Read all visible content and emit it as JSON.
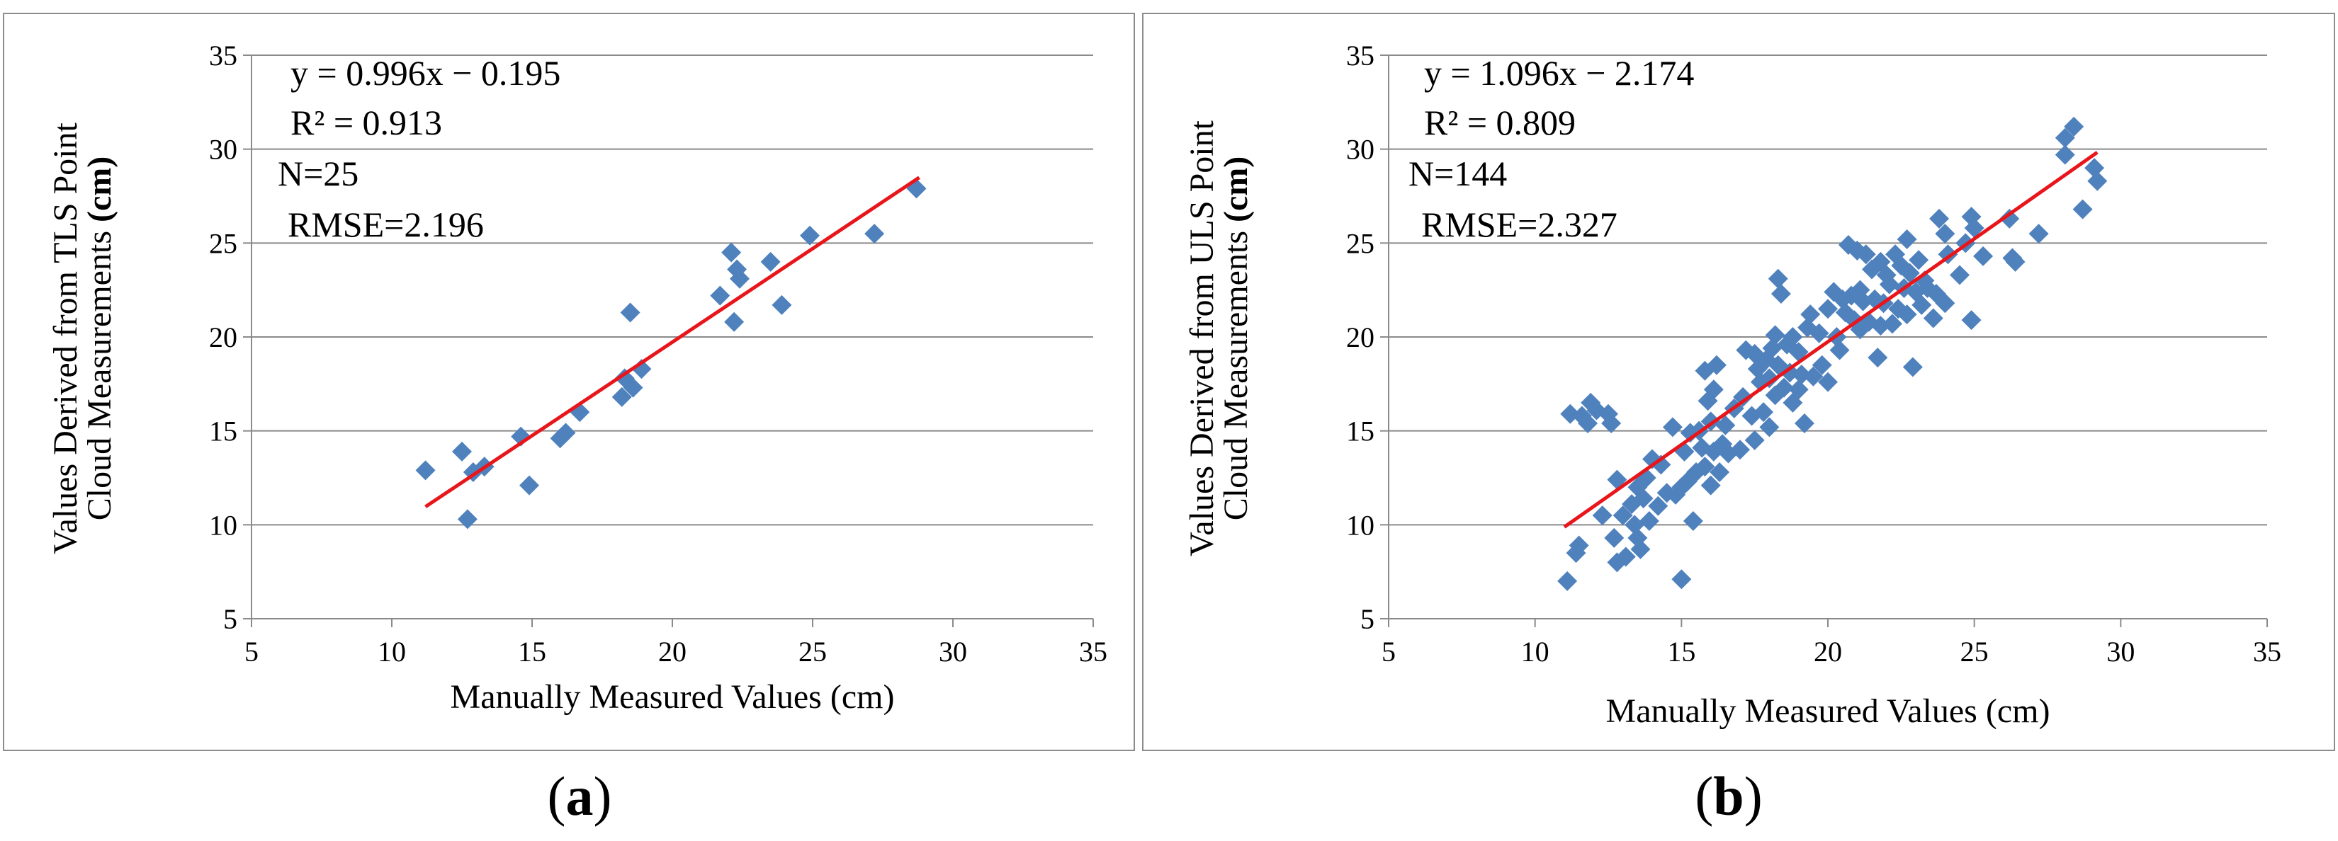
{
  "chart_data": [
    {
      "type": "scatter",
      "panel_label": "a",
      "xlabel": "Manually Measured Values (cm)",
      "ylabel_line1": "Values Derived from TLS Point",
      "ylabel_line2": "Cloud Measurements",
      "ylabel_unit": "(cm)",
      "xlim": [
        5,
        35
      ],
      "ylim": [
        5,
        35
      ],
      "xticks": [
        5,
        10,
        15,
        20,
        25,
        30,
        35
      ],
      "yticks": [
        5,
        10,
        15,
        20,
        25,
        30,
        35
      ],
      "grid": "horizontal",
      "annotations": [
        "y = 0.996x − 0.195",
        "R² = 0.913",
        "N=25",
        "RMSE=2.196"
      ],
      "fit": {
        "slope": 0.996,
        "intercept": -0.195,
        "x_range": [
          11.2,
          28.8
        ],
        "color": "#e8161b"
      },
      "marker_color": "#4f81bd",
      "points": [
        [
          11.2,
          12.9
        ],
        [
          12.5,
          13.9
        ],
        [
          12.7,
          10.3
        ],
        [
          12.9,
          12.8
        ],
        [
          13.3,
          13.1
        ],
        [
          14.6,
          14.7
        ],
        [
          14.9,
          12.1
        ],
        [
          16.0,
          14.6
        ],
        [
          16.2,
          14.9
        ],
        [
          16.7,
          16.0
        ],
        [
          18.2,
          16.8
        ],
        [
          18.3,
          17.8
        ],
        [
          18.5,
          21.3
        ],
        [
          18.6,
          17.3
        ],
        [
          18.9,
          18.3
        ],
        [
          21.7,
          22.2
        ],
        [
          22.1,
          24.5
        ],
        [
          22.2,
          20.8
        ],
        [
          22.3,
          23.6
        ],
        [
          22.4,
          23.1
        ],
        [
          23.5,
          24.0
        ],
        [
          23.9,
          21.7
        ],
        [
          24.9,
          25.4
        ],
        [
          27.2,
          25.5
        ],
        [
          28.7,
          27.9
        ]
      ]
    },
    {
      "type": "scatter",
      "panel_label": "b",
      "xlabel": "Manually Measured Values (cm)",
      "ylabel_line1": "Values Derived from ULS Point",
      "ylabel_line2": "Cloud Measurements",
      "ylabel_unit": "(cm)",
      "xlim": [
        5,
        35
      ],
      "ylim": [
        5,
        35
      ],
      "xticks": [
        5,
        10,
        15,
        20,
        25,
        30,
        35
      ],
      "yticks": [
        5,
        10,
        15,
        20,
        25,
        30,
        35
      ],
      "grid": "horizontal",
      "annotations": [
        "y = 1.096x − 2.174",
        "R² = 0.809",
        "N=144",
        "RMSE=2.327"
      ],
      "fit": {
        "slope": 1.096,
        "intercept": -2.174,
        "x_range": [
          11.0,
          29.2
        ],
        "color": "#e8161b"
      },
      "marker_color": "#4f81bd",
      "points": [
        [
          11.1,
          7.0
        ],
        [
          11.2,
          15.9
        ],
        [
          11.4,
          8.5
        ],
        [
          11.5,
          8.9
        ],
        [
          11.6,
          15.8
        ],
        [
          11.8,
          15.4
        ],
        [
          11.9,
          16.5
        ],
        [
          12.1,
          16.1
        ],
        [
          12.3,
          10.5
        ],
        [
          12.5,
          15.9
        ],
        [
          12.6,
          15.4
        ],
        [
          12.7,
          9.3
        ],
        [
          12.8,
          12.4
        ],
        [
          12.8,
          8.0
        ],
        [
          13.0,
          10.5
        ],
        [
          13.1,
          8.3
        ],
        [
          13.3,
          11.1
        ],
        [
          13.4,
          10.0
        ],
        [
          13.5,
          12.0
        ],
        [
          13.5,
          9.3
        ],
        [
          13.6,
          8.7
        ],
        [
          13.7,
          11.4
        ],
        [
          13.8,
          12.5
        ],
        [
          13.9,
          10.2
        ],
        [
          14.0,
          13.5
        ],
        [
          14.2,
          11.0
        ],
        [
          14.3,
          13.2
        ],
        [
          14.5,
          11.7
        ],
        [
          14.7,
          15.2
        ],
        [
          14.8,
          11.6
        ],
        [
          15.0,
          7.1
        ],
        [
          15.0,
          12.0
        ],
        [
          15.1,
          13.9
        ],
        [
          15.2,
          12.3
        ],
        [
          15.3,
          14.9
        ],
        [
          15.4,
          10.2
        ],
        [
          15.5,
          12.8
        ],
        [
          15.6,
          15.0
        ],
        [
          15.7,
          14.1
        ],
        [
          15.8,
          13.1
        ],
        [
          15.8,
          18.2
        ],
        [
          15.9,
          16.6
        ],
        [
          16.0,
          12.1
        ],
        [
          16.0,
          15.5
        ],
        [
          16.1,
          13.9
        ],
        [
          16.1,
          17.2
        ],
        [
          16.2,
          18.5
        ],
        [
          16.3,
          12.8
        ],
        [
          16.4,
          14.3
        ],
        [
          16.5,
          15.3
        ],
        [
          16.6,
          13.8
        ],
        [
          16.8,
          16.2
        ],
        [
          17.0,
          14.0
        ],
        [
          17.1,
          16.8
        ],
        [
          17.2,
          19.3
        ],
        [
          17.4,
          15.8
        ],
        [
          17.5,
          14.5
        ],
        [
          17.5,
          19.1
        ],
        [
          17.6,
          18.3
        ],
        [
          17.7,
          17.6
        ],
        [
          17.8,
          16.0
        ],
        [
          17.9,
          18.8
        ],
        [
          18.0,
          15.2
        ],
        [
          18.0,
          17.8
        ],
        [
          18.1,
          19.4
        ],
        [
          18.2,
          20.1
        ],
        [
          18.2,
          16.9
        ],
        [
          18.3,
          23.1
        ],
        [
          18.3,
          18.5
        ],
        [
          18.4,
          22.3
        ],
        [
          18.5,
          17.3
        ],
        [
          18.6,
          19.6
        ],
        [
          18.7,
          18.1
        ],
        [
          18.8,
          16.5
        ],
        [
          18.8,
          20.0
        ],
        [
          19.0,
          17.2
        ],
        [
          19.0,
          19.2
        ],
        [
          19.1,
          18.0
        ],
        [
          19.2,
          15.4
        ],
        [
          19.3,
          20.5
        ],
        [
          19.4,
          21.2
        ],
        [
          19.5,
          17.9
        ],
        [
          19.7,
          20.2
        ],
        [
          19.8,
          18.5
        ],
        [
          20.0,
          21.5
        ],
        [
          20.0,
          17.6
        ],
        [
          20.2,
          22.4
        ],
        [
          20.3,
          20.0
        ],
        [
          20.4,
          19.3
        ],
        [
          20.5,
          22.0
        ],
        [
          20.6,
          21.3
        ],
        [
          20.7,
          24.9
        ],
        [
          20.8,
          22.2
        ],
        [
          20.9,
          20.9
        ],
        [
          21.0,
          24.6
        ],
        [
          21.1,
          20.4
        ],
        [
          21.1,
          22.5
        ],
        [
          21.2,
          21.9
        ],
        [
          21.3,
          24.4
        ],
        [
          21.4,
          20.8
        ],
        [
          21.5,
          23.6
        ],
        [
          21.6,
          22.0
        ],
        [
          21.7,
          18.9
        ],
        [
          21.8,
          20.6
        ],
        [
          21.8,
          24.0
        ],
        [
          21.9,
          21.8
        ],
        [
          22.0,
          23.3
        ],
        [
          22.1,
          22.8
        ],
        [
          22.2,
          20.7
        ],
        [
          22.3,
          24.4
        ],
        [
          22.4,
          21.5
        ],
        [
          22.5,
          23.8
        ],
        [
          22.6,
          22.6
        ],
        [
          22.7,
          25.2
        ],
        [
          22.7,
          21.2
        ],
        [
          22.8,
          23.4
        ],
        [
          22.9,
          18.4
        ],
        [
          23.0,
          22.4
        ],
        [
          23.1,
          24.1
        ],
        [
          23.2,
          21.7
        ],
        [
          23.3,
          23.0
        ],
        [
          23.4,
          22.6
        ],
        [
          23.6,
          21.0
        ],
        [
          23.7,
          22.3
        ],
        [
          23.8,
          26.3
        ],
        [
          24.0,
          25.5
        ],
        [
          24.0,
          21.8
        ],
        [
          24.1,
          24.4
        ],
        [
          24.5,
          23.3
        ],
        [
          24.7,
          25.0
        ],
        [
          24.9,
          26.4
        ],
        [
          24.9,
          20.9
        ],
        [
          25.0,
          25.8
        ],
        [
          25.3,
          24.3
        ],
        [
          26.2,
          26.3
        ],
        [
          26.3,
          24.2
        ],
        [
          26.4,
          24.0
        ],
        [
          27.2,
          25.5
        ],
        [
          28.1,
          30.6
        ],
        [
          28.1,
          29.7
        ],
        [
          28.4,
          31.2
        ],
        [
          28.7,
          26.8
        ],
        [
          29.1,
          29.0
        ],
        [
          29.2,
          28.3
        ]
      ]
    }
  ]
}
